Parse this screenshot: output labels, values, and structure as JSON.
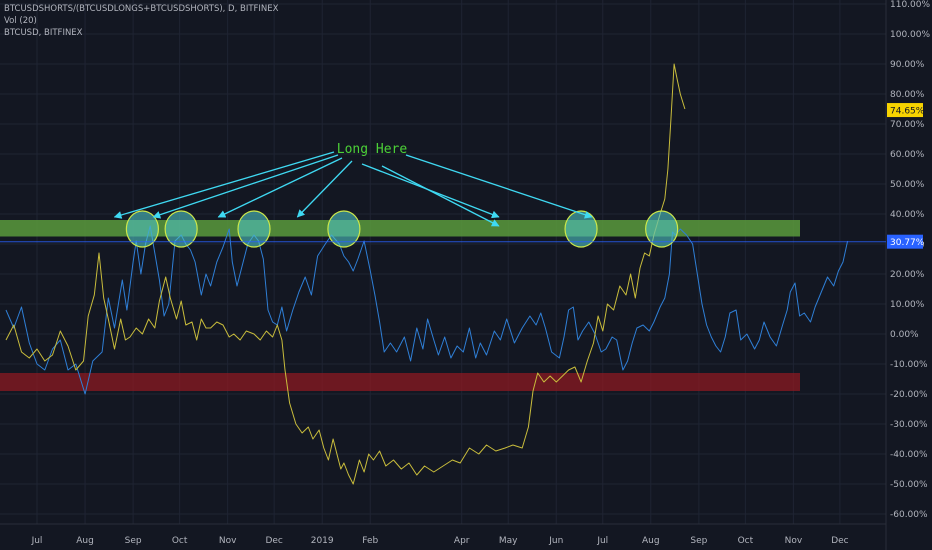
{
  "legend": {
    "line1": "BTCUSDSHORTS/(BTCUSDLONGS+BTCUSDSHORTS), D, BITFINEX",
    "line2": "Vol (20)",
    "line3": "BTCUSD, BITFINEX"
  },
  "annotation": {
    "text": "Long Here",
    "color": "#4cd137",
    "arrow_color": "#3fd9f2"
  },
  "colors": {
    "blue_series": "#2f7fd6",
    "yellow_series": "#c9bd3c",
    "green_band": "#5a9a3c",
    "red_band": "#8c1a22",
    "circle_fill": "#4fc3c3",
    "circle_stroke": "#cde84a",
    "badge_yellow": "#f7d300",
    "badge_blue": "#2962ff"
  },
  "chart_data": {
    "type": "line",
    "y_ticks": [
      "110.00%",
      "100.00%",
      "90.00%",
      "80.00%",
      "70.00%",
      "60.00%",
      "50.00%",
      "40.00%",
      "30.00%",
      "20.00%",
      "10.00%",
      "0.00%",
      "-10.00%",
      "-20.00%",
      "-30.00%",
      "-40.00%",
      "-50.00%",
      "-60.00%"
    ],
    "y_tick_values": [
      110,
      100,
      90,
      80,
      70,
      60,
      50,
      40,
      30,
      20,
      10,
      0,
      -10,
      -20,
      -30,
      -40,
      -50,
      -60
    ],
    "x_ticks": [
      "Jul",
      "Aug",
      "Sep",
      "Oct",
      "Nov",
      "Dec",
      "2019",
      "Feb",
      "Apr",
      "May",
      "Jun",
      "Jul",
      "Aug",
      "Sep",
      "Oct",
      "Nov",
      "Dec"
    ],
    "x_tick_days": [
      0,
      31,
      62,
      92,
      123,
      153,
      184,
      215,
      274,
      304,
      335,
      365,
      396,
      427,
      457,
      488,
      518
    ],
    "ylim": [
      -64,
      113
    ],
    "last_values": {
      "yellow": "74.65%",
      "blue": "30.77%"
    },
    "zones": [
      {
        "name": "green",
        "y_from": 32.5,
        "y_to": 38
      },
      {
        "name": "red",
        "y_from": -19,
        "y_to": -13
      }
    ],
    "circles_day": [
      68,
      93,
      140,
      198,
      351,
      403
    ],
    "circles_y": 35,
    "series": [
      {
        "color_key": "blue_series",
        "points": [
          [
            -20,
            8
          ],
          [
            -15,
            2
          ],
          [
            -10,
            9
          ],
          [
            -5,
            -3
          ],
          [
            0,
            -10
          ],
          [
            5,
            -12
          ],
          [
            10,
            -5
          ],
          [
            15,
            -2
          ],
          [
            20,
            -12
          ],
          [
            25,
            -10
          ],
          [
            31,
            -20
          ],
          [
            36,
            -9
          ],
          [
            42,
            -6
          ],
          [
            46,
            12
          ],
          [
            50,
            2
          ],
          [
            55,
            18
          ],
          [
            58,
            8
          ],
          [
            62,
            24
          ],
          [
            64,
            31
          ],
          [
            67,
            20
          ],
          [
            70,
            30
          ],
          [
            73,
            36
          ],
          [
            76,
            27
          ],
          [
            79,
            18
          ],
          [
            82,
            6
          ],
          [
            85,
            10
          ],
          [
            89,
            31
          ],
          [
            93,
            33
          ],
          [
            96,
            30
          ],
          [
            99,
            28
          ],
          [
            102,
            24
          ],
          [
            106,
            13
          ],
          [
            109,
            20
          ],
          [
            112,
            16
          ],
          [
            116,
            24
          ],
          [
            120,
            29
          ],
          [
            124,
            35
          ],
          [
            126,
            24
          ],
          [
            129,
            16
          ],
          [
            132,
            22
          ],
          [
            136,
            30
          ],
          [
            140,
            33
          ],
          [
            143,
            31
          ],
          [
            146,
            25
          ],
          [
            149,
            8
          ],
          [
            152,
            4
          ],
          [
            155,
            3
          ],
          [
            158,
            9
          ],
          [
            161,
            1
          ],
          [
            165,
            8
          ],
          [
            169,
            14
          ],
          [
            173,
            19
          ],
          [
            177,
            13
          ],
          [
            181,
            26
          ],
          [
            186,
            30
          ],
          [
            190,
            33
          ],
          [
            195,
            30
          ],
          [
            198,
            26
          ],
          [
            201,
            24
          ],
          [
            204,
            21
          ],
          [
            207,
            25
          ],
          [
            211,
            31
          ],
          [
            215,
            21
          ],
          [
            218,
            13
          ],
          [
            221,
            4
          ],
          [
            224,
            -6
          ],
          [
            228,
            -3
          ],
          [
            232,
            -6
          ],
          [
            237,
            -1
          ],
          [
            241,
            -9
          ],
          [
            245,
            2
          ],
          [
            249,
            -5
          ],
          [
            252,
            5
          ],
          [
            256,
            -2
          ],
          [
            259,
            -7
          ],
          [
            263,
            -1
          ],
          [
            267,
            -8
          ],
          [
            271,
            -4
          ],
          [
            275,
            -6
          ],
          [
            279,
            2
          ],
          [
            283,
            -8
          ],
          [
            286,
            -3
          ],
          [
            290,
            -7
          ],
          [
            295,
            1
          ],
          [
            299,
            -2
          ],
          [
            303,
            5
          ],
          [
            308,
            -3
          ],
          [
            313,
            2
          ],
          [
            318,
            6
          ],
          [
            322,
            3
          ],
          [
            325,
            7
          ],
          [
            328,
            2
          ],
          [
            332,
            -6
          ],
          [
            337,
            -8
          ],
          [
            340,
            -1
          ],
          [
            343,
            8
          ],
          [
            346,
            9
          ],
          [
            349,
            -2
          ],
          [
            352,
            1
          ],
          [
            356,
            4
          ],
          [
            360,
            0
          ],
          [
            364,
            -6
          ],
          [
            367,
            -5
          ],
          [
            371,
            -1
          ],
          [
            374,
            -2
          ],
          [
            378,
            -12
          ],
          [
            381,
            -9
          ],
          [
            384,
            -3
          ],
          [
            387,
            2
          ],
          [
            391,
            3
          ],
          [
            395,
            1
          ],
          [
            398,
            4
          ],
          [
            402,
            9
          ],
          [
            405,
            12
          ],
          [
            408,
            20
          ],
          [
            410,
            34
          ],
          [
            412,
            33
          ],
          [
            415,
            35
          ],
          [
            419,
            33
          ],
          [
            423,
            30
          ],
          [
            426,
            20
          ],
          [
            429,
            10
          ],
          [
            432,
            3
          ],
          [
            435,
            -1
          ],
          [
            438,
            -4
          ],
          [
            441,
            -6
          ],
          [
            444,
            -1
          ],
          [
            447,
            7
          ],
          [
            451,
            8
          ],
          [
            454,
            -2
          ],
          [
            458,
            0
          ],
          [
            463,
            -5
          ],
          [
            466,
            -2
          ],
          [
            469,
            4
          ],
          [
            473,
            -1
          ],
          [
            477,
            -4
          ],
          [
            481,
            3
          ],
          [
            484,
            8
          ],
          [
            486,
            14
          ],
          [
            489,
            17
          ],
          [
            492,
            6
          ],
          [
            495,
            7
          ],
          [
            499,
            4
          ],
          [
            502,
            9
          ],
          [
            506,
            14
          ],
          [
            510,
            19
          ],
          [
            514,
            16
          ],
          [
            517,
            21
          ],
          [
            520,
            24
          ],
          [
            523,
            31
          ]
        ]
      },
      {
        "color_key": "yellow_series",
        "points": [
          [
            -20,
            -2
          ],
          [
            -15,
            3
          ],
          [
            -10,
            -6
          ],
          [
            -5,
            -8
          ],
          [
            0,
            -5
          ],
          [
            5,
            -9
          ],
          [
            10,
            -7
          ],
          [
            15,
            1
          ],
          [
            20,
            -4
          ],
          [
            25,
            -12
          ],
          [
            30,
            -9
          ],
          [
            33,
            6
          ],
          [
            37,
            13
          ],
          [
            40,
            27
          ],
          [
            43,
            12
          ],
          [
            46,
            5
          ],
          [
            50,
            -5
          ],
          [
            54,
            5
          ],
          [
            57,
            -2
          ],
          [
            60,
            -1
          ],
          [
            64,
            2
          ],
          [
            68,
            0
          ],
          [
            72,
            5
          ],
          [
            76,
            2
          ],
          [
            79,
            11
          ],
          [
            83,
            19
          ],
          [
            86,
            12
          ],
          [
            90,
            5
          ],
          [
            93,
            11
          ],
          [
            96,
            3
          ],
          [
            100,
            4
          ],
          [
            103,
            -2
          ],
          [
            106,
            5
          ],
          [
            109,
            2
          ],
          [
            112,
            2
          ],
          [
            116,
            4
          ],
          [
            120,
            3
          ],
          [
            124,
            -1
          ],
          [
            127,
            0
          ],
          [
            131,
            -2
          ],
          [
            135,
            1
          ],
          [
            140,
            0
          ],
          [
            144,
            -2
          ],
          [
            148,
            1
          ],
          [
            152,
            -1
          ],
          [
            155,
            3
          ],
          [
            158,
            -2
          ],
          [
            160,
            -12
          ],
          [
            163,
            -23
          ],
          [
            167,
            -30
          ],
          [
            171,
            -33
          ],
          [
            175,
            -31
          ],
          [
            178,
            -35
          ],
          [
            182,
            -32
          ],
          [
            185,
            -38
          ],
          [
            188,
            -42
          ],
          [
            191,
            -35
          ],
          [
            194,
            -41
          ],
          [
            196,
            -45
          ],
          [
            198,
            -43
          ],
          [
            201,
            -47
          ],
          [
            204,
            -50
          ],
          [
            208,
            -42
          ],
          [
            211,
            -46
          ],
          [
            214,
            -40
          ],
          [
            217,
            -42
          ],
          [
            221,
            -39
          ],
          [
            225,
            -44
          ],
          [
            230,
            -42
          ],
          [
            235,
            -45
          ],
          [
            240,
            -43
          ],
          [
            245,
            -47
          ],
          [
            250,
            -44
          ],
          [
            256,
            -46
          ],
          [
            262,
            -44
          ],
          [
            268,
            -42
          ],
          [
            273,
            -43
          ],
          [
            279,
            -38
          ],
          [
            285,
            -40
          ],
          [
            290,
            -37
          ],
          [
            296,
            -39
          ],
          [
            302,
            -38
          ],
          [
            307,
            -37
          ],
          [
            313,
            -38
          ],
          [
            317,
            -31
          ],
          [
            320,
            -19
          ],
          [
            323,
            -13
          ],
          [
            327,
            -16
          ],
          [
            331,
            -14
          ],
          [
            335,
            -16
          ],
          [
            339,
            -14
          ],
          [
            343,
            -12
          ],
          [
            347,
            -11
          ],
          [
            351,
            -16
          ],
          [
            355,
            -9
          ],
          [
            359,
            -3
          ],
          [
            362,
            6
          ],
          [
            365,
            1
          ],
          [
            368,
            10
          ],
          [
            372,
            8
          ],
          [
            376,
            16
          ],
          [
            380,
            13
          ],
          [
            383,
            20
          ],
          [
            386,
            12
          ],
          [
            389,
            22
          ],
          [
            392,
            27
          ],
          [
            395,
            26
          ],
          [
            398,
            33
          ],
          [
            402,
            40
          ],
          [
            405,
            45
          ],
          [
            407,
            55
          ],
          [
            409,
            72
          ],
          [
            411,
            90
          ],
          [
            413,
            85
          ],
          [
            415,
            80
          ],
          [
            418,
            75
          ]
        ]
      }
    ]
  }
}
